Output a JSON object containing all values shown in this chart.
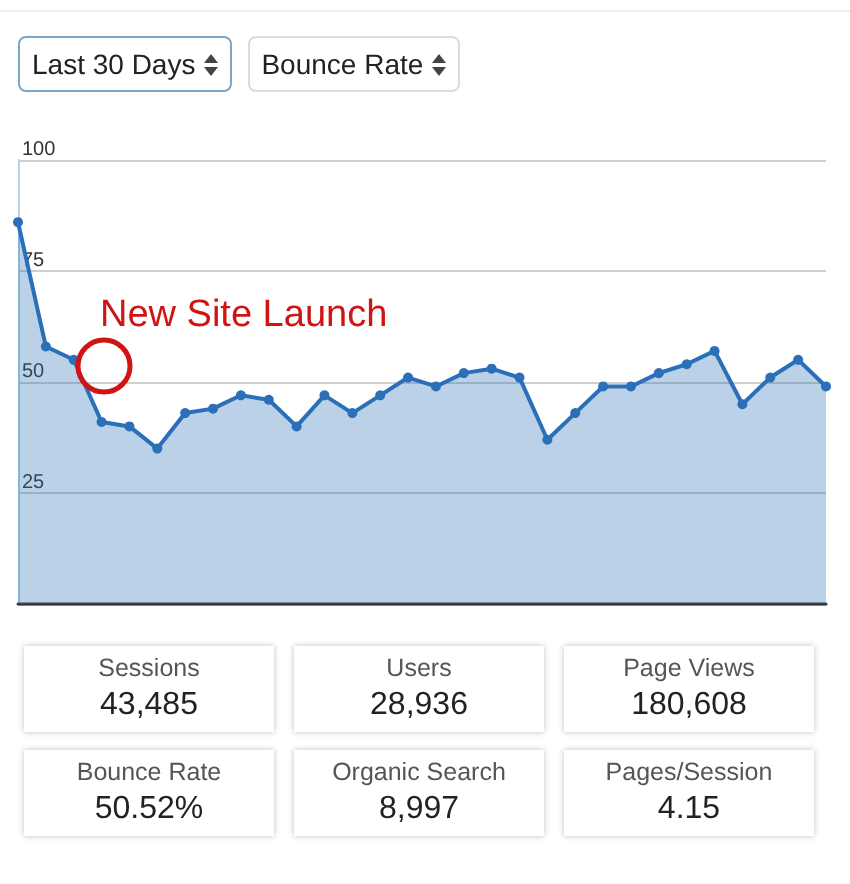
{
  "chart_data": [
    {
      "type": "area",
      "categories": [
        null,
        null,
        null,
        null,
        null,
        null,
        null,
        null,
        null,
        null,
        null,
        null,
        null,
        null,
        null,
        null,
        null,
        null,
        null,
        null,
        null,
        null,
        null,
        null,
        null,
        null,
        null,
        null,
        null,
        null
      ],
      "series": [
        {
          "color": "#2a6fb8",
          "values": [
            86,
            58,
            55,
            41,
            40,
            35,
            43,
            44,
            47,
            46,
            40,
            47,
            43,
            47,
            51,
            49,
            52,
            53,
            51,
            37,
            43,
            49,
            49,
            52,
            54,
            57,
            45,
            51,
            55,
            49
          ]
        }
      ],
      "ylim": [
        0,
        100
      ],
      "yticks": [
        {
          "value": 0,
          "label": null
        },
        25,
        50,
        75,
        100
      ],
      "grid": "y",
      "marker": "circle",
      "line_style": "solid",
      "annotations": [
        "Last 30 Days",
        "Bounce Rate",
        "New Site Launch"
      ]
    },
    {
      "type": "other",
      "annotations": [
        "Sessions",
        "43,485",
        "Users",
        "28,936",
        "Page Views",
        "180,608",
        "Bounce Rate",
        "50.52%",
        "Organic Search",
        "8,997",
        "Pages/Session",
        "4.15"
      ]
    }
  ]
}
